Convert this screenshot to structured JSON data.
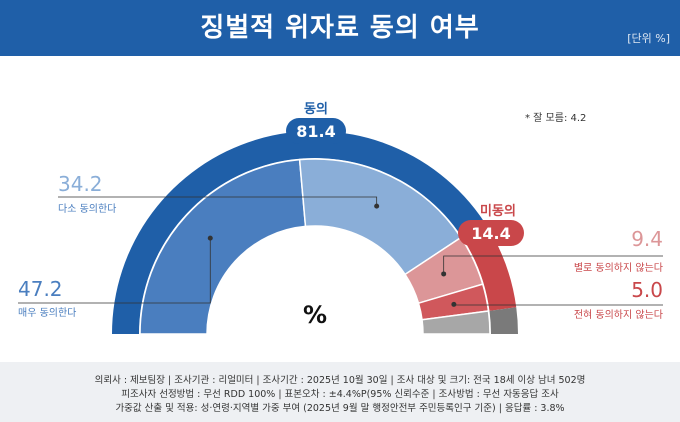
{
  "header": {
    "title": "징벌적 위자료 동의 여부",
    "unit": "[단위 %]"
  },
  "note": "* 잘 모름: 4.2",
  "center_symbol": "%",
  "footer": {
    "line1": "의뢰사 : 제보팀장  | 조사기관 : 리얼미터  |  조사기간 : 2025년 10월 30일 | 조사 대상 및 크기:  전국 18세 이상 남녀 502명",
    "line2": "피조사자 선정방법 : 무선 RDD 100% | 표본오차 : ±4.4%P(95%  신뢰수준  | 조사방법 : 무선 자동응답  조사",
    "line3": "가중값 산출 및 적용: 성·연령·지역별  가중 부여 (2025년 9월 말 행정안전부  주민등록인구  기준) | 응답률 : 3.8%"
  },
  "chart_data": {
    "type": "pie",
    "layout": "semicircle",
    "groups": [
      {
        "name": "동의",
        "value": 81.4,
        "color": "#1f5fa8"
      },
      {
        "name": "미동의",
        "value": 14.4,
        "color": "#c9474a"
      }
    ],
    "categories": [
      "매우 동의한다",
      "다소 동의한다",
      "별로 동의하지 않는다",
      "전혀 동의하지 않는다",
      "잘 모름"
    ],
    "values": [
      47.2,
      34.2,
      9.4,
      5.0,
      4.2
    ],
    "colors": [
      "#4a7ebf",
      "#8aaed8",
      "#dc9698",
      "#d0585c",
      "#a7a7a7"
    ],
    "value_labels": [
      "47.2",
      "34.2",
      "9.4",
      "5.0",
      "4.2"
    ]
  }
}
